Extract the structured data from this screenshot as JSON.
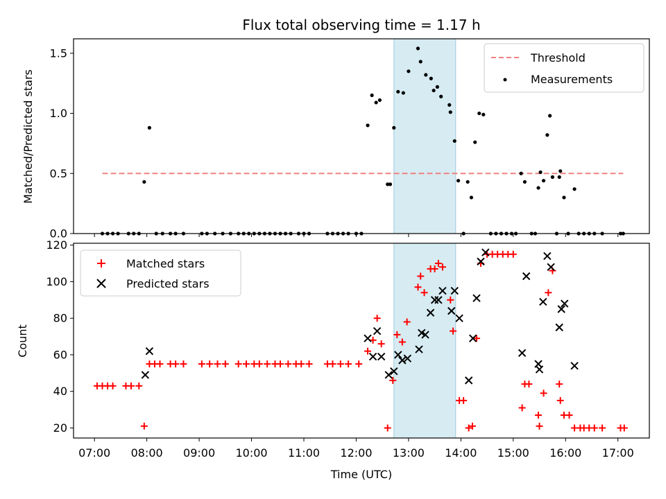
{
  "chart_data": [
    {
      "type": "scatter",
      "title": "Flux total observing time = 1.17 h",
      "xlabel": "",
      "ylabel": "Matched/Predicted stars",
      "ylim": [
        0,
        1.62
      ],
      "yticks": [
        "0.0",
        "0.5",
        "1.0",
        "1.5"
      ],
      "ytick_values": [
        0,
        0.5,
        1.0,
        1.5
      ],
      "legend_position": "top-right",
      "threshold": {
        "name": "Threshold",
        "value": 0.5,
        "x_start": 7.15,
        "x_end": 17.1,
        "color": "#f08080"
      },
      "shaded_region": {
        "x_start": 12.72,
        "x_end": 13.9,
        "color": "#add8e6"
      },
      "series": [
        {
          "name": "Measurements",
          "color": "#000000",
          "points": [
            [
              7.15,
              0
            ],
            [
              7.25,
              0
            ],
            [
              7.35,
              0
            ],
            [
              7.45,
              0
            ],
            [
              7.65,
              0
            ],
            [
              7.75,
              0
            ],
            [
              7.85,
              0
            ],
            [
              7.95,
              0.43
            ],
            [
              8.05,
              0.88
            ],
            [
              8.18,
              0
            ],
            [
              8.3,
              0
            ],
            [
              8.45,
              0
            ],
            [
              8.55,
              0
            ],
            [
              8.7,
              0
            ],
            [
              9.05,
              0
            ],
            [
              9.15,
              0
            ],
            [
              9.3,
              0
            ],
            [
              9.45,
              0
            ],
            [
              9.6,
              0
            ],
            [
              9.75,
              0
            ],
            [
              9.85,
              0
            ],
            [
              9.95,
              0
            ],
            [
              10.05,
              0
            ],
            [
              10.15,
              0
            ],
            [
              10.25,
              0
            ],
            [
              10.35,
              0
            ],
            [
              10.45,
              0
            ],
            [
              10.55,
              0
            ],
            [
              10.65,
              0
            ],
            [
              10.75,
              0
            ],
            [
              10.9,
              0
            ],
            [
              11.0,
              0
            ],
            [
              11.1,
              0
            ],
            [
              11.45,
              0
            ],
            [
              11.55,
              0
            ],
            [
              11.65,
              0
            ],
            [
              11.75,
              0
            ],
            [
              11.85,
              0
            ],
            [
              12.0,
              0
            ],
            [
              12.1,
              0
            ],
            [
              12.22,
              0.9
            ],
            [
              12.3,
              1.15
            ],
            [
              12.38,
              1.09
            ],
            [
              12.45,
              1.11
            ],
            [
              12.6,
              0.41
            ],
            [
              12.65,
              0.41
            ],
            [
              12.72,
              0.88
            ],
            [
              12.8,
              1.18
            ],
            [
              12.9,
              1.17
            ],
            [
              13.0,
              1.35
            ],
            [
              13.18,
              1.54
            ],
            [
              13.23,
              1.43
            ],
            [
              13.33,
              1.32
            ],
            [
              13.43,
              1.29
            ],
            [
              13.48,
              1.19
            ],
            [
              13.55,
              1.22
            ],
            [
              13.62,
              1.14
            ],
            [
              13.78,
              1.07
            ],
            [
              13.8,
              1.01
            ],
            [
              13.88,
              0.77
            ],
            [
              13.95,
              0.44
            ],
            [
              14.05,
              0
            ],
            [
              14.13,
              0.43
            ],
            [
              14.2,
              0.3
            ],
            [
              14.27,
              0.76
            ],
            [
              14.35,
              1.0
            ],
            [
              14.43,
              0.99
            ],
            [
              14.57,
              0
            ],
            [
              14.67,
              0
            ],
            [
              14.77,
              0
            ],
            [
              14.87,
              0
            ],
            [
              14.97,
              0
            ],
            [
              15.05,
              0
            ],
            [
              15.15,
              0.5
            ],
            [
              15.22,
              0.43
            ],
            [
              15.35,
              0
            ],
            [
              15.42,
              0
            ],
            [
              15.48,
              0.38
            ],
            [
              15.52,
              0.51
            ],
            [
              15.58,
              0.44
            ],
            [
              15.65,
              0.82
            ],
            [
              15.7,
              0.98
            ],
            [
              15.75,
              0.47
            ],
            [
              15.83,
              0
            ],
            [
              15.88,
              0.47
            ],
            [
              15.9,
              0.52
            ],
            [
              15.97,
              0.3
            ],
            [
              16.05,
              0
            ],
            [
              16.17,
              0.37
            ],
            [
              16.25,
              0
            ],
            [
              16.35,
              0
            ],
            [
              16.45,
              0
            ],
            [
              16.55,
              0
            ],
            [
              16.7,
              0
            ],
            [
              17.05,
              0
            ],
            [
              17.1,
              0
            ]
          ]
        }
      ]
    },
    {
      "type": "scatter",
      "title": "",
      "xlabel": "Time (UTC)",
      "ylabel": "Count",
      "xlim": [
        6.6,
        17.6
      ],
      "xticks": [
        "07:00",
        "08:00",
        "09:00",
        "10:00",
        "11:00",
        "12:00",
        "13:00",
        "14:00",
        "15:00",
        "16:00",
        "17:00"
      ],
      "xtick_values": [
        7,
        8,
        9,
        10,
        11,
        12,
        13,
        14,
        15,
        16,
        17
      ],
      "ylim": [
        14.5,
        121
      ],
      "yticks": [
        "20",
        "40",
        "60",
        "80",
        "100",
        "120"
      ],
      "ytick_values": [
        20,
        40,
        60,
        80,
        100,
        120
      ],
      "legend_position": "top-left",
      "shaded_region": {
        "x_start": 12.72,
        "x_end": 13.9,
        "color": "#add8e6"
      },
      "series": [
        {
          "name": "Matched stars",
          "marker": "plus",
          "color": "#ff0000",
          "points": [
            [
              7.05,
              43
            ],
            [
              7.15,
              43
            ],
            [
              7.25,
              43
            ],
            [
              7.35,
              43
            ],
            [
              7.6,
              43
            ],
            [
              7.7,
              43
            ],
            [
              7.85,
              43
            ],
            [
              7.95,
              21
            ],
            [
              8.05,
              55
            ],
            [
              8.15,
              55
            ],
            [
              8.25,
              55
            ],
            [
              8.45,
              55
            ],
            [
              8.55,
              55
            ],
            [
              8.7,
              55
            ],
            [
              9.05,
              55
            ],
            [
              9.2,
              55
            ],
            [
              9.35,
              55
            ],
            [
              9.5,
              55
            ],
            [
              9.75,
              55
            ],
            [
              9.9,
              55
            ],
            [
              10.05,
              55
            ],
            [
              10.15,
              55
            ],
            [
              10.3,
              55
            ],
            [
              10.45,
              55
            ],
            [
              10.55,
              55
            ],
            [
              10.7,
              55
            ],
            [
              10.85,
              55
            ],
            [
              10.95,
              55
            ],
            [
              11.1,
              55
            ],
            [
              11.45,
              55
            ],
            [
              11.55,
              55
            ],
            [
              11.7,
              55
            ],
            [
              11.85,
              55
            ],
            [
              12.05,
              55
            ],
            [
              12.22,
              62
            ],
            [
              12.32,
              68
            ],
            [
              12.4,
              80
            ],
            [
              12.48,
              66
            ],
            [
              12.6,
              20
            ],
            [
              12.7,
              46
            ],
            [
              12.78,
              71
            ],
            [
              12.88,
              67
            ],
            [
              12.97,
              78
            ],
            [
              13.18,
              97
            ],
            [
              13.23,
              103
            ],
            [
              13.3,
              94
            ],
            [
              13.42,
              107
            ],
            [
              13.5,
              107
            ],
            [
              13.57,
              110
            ],
            [
              13.65,
              108
            ],
            [
              13.8,
              90
            ],
            [
              13.85,
              73
            ],
            [
              13.97,
              35
            ],
            [
              14.05,
              35
            ],
            [
              14.15,
              20
            ],
            [
              14.22,
              21
            ],
            [
              14.3,
              69
            ],
            [
              14.38,
              110
            ],
            [
              14.5,
              115
            ],
            [
              14.6,
              115
            ],
            [
              14.7,
              115
            ],
            [
              14.8,
              115
            ],
            [
              14.9,
              115
            ],
            [
              15.0,
              115
            ],
            [
              15.17,
              31
            ],
            [
              15.22,
              44
            ],
            [
              15.3,
              44
            ],
            [
              15.48,
              27
            ],
            [
              15.5,
              21
            ],
            [
              15.58,
              39
            ],
            [
              15.67,
              94
            ],
            [
              15.75,
              106
            ],
            [
              15.88,
              44
            ],
            [
              15.9,
              35
            ],
            [
              15.97,
              27
            ],
            [
              16.07,
              27
            ],
            [
              16.17,
              20
            ],
            [
              16.28,
              20
            ],
            [
              16.35,
              20
            ],
            [
              16.45,
              20
            ],
            [
              16.55,
              20
            ],
            [
              16.7,
              20
            ],
            [
              17.05,
              20
            ],
            [
              17.12,
              20
            ]
          ]
        },
        {
          "name": "Predicted stars",
          "marker": "x",
          "color": "#000000",
          "points": [
            [
              7.97,
              49
            ],
            [
              8.05,
              62
            ],
            [
              12.22,
              69
            ],
            [
              12.32,
              59
            ],
            [
              12.4,
              73
            ],
            [
              12.48,
              59
            ],
            [
              12.62,
              49
            ],
            [
              12.72,
              51
            ],
            [
              12.8,
              60
            ],
            [
              12.88,
              57
            ],
            [
              12.98,
              58
            ],
            [
              13.2,
              63
            ],
            [
              13.25,
              72
            ],
            [
              13.32,
              71
            ],
            [
              13.42,
              83
            ],
            [
              13.5,
              90
            ],
            [
              13.57,
              90
            ],
            [
              13.65,
              95
            ],
            [
              13.82,
              84
            ],
            [
              13.88,
              95
            ],
            [
              13.97,
              80
            ],
            [
              14.15,
              46
            ],
            [
              14.23,
              69
            ],
            [
              14.3,
              91
            ],
            [
              14.38,
              111
            ],
            [
              14.47,
              116
            ],
            [
              15.17,
              61
            ],
            [
              15.25,
              103
            ],
            [
              15.48,
              55
            ],
            [
              15.5,
              52
            ],
            [
              15.57,
              89
            ],
            [
              15.65,
              114
            ],
            [
              15.72,
              108
            ],
            [
              15.88,
              75
            ],
            [
              15.92,
              85
            ],
            [
              15.98,
              88
            ],
            [
              16.17,
              54
            ]
          ]
        }
      ]
    }
  ]
}
